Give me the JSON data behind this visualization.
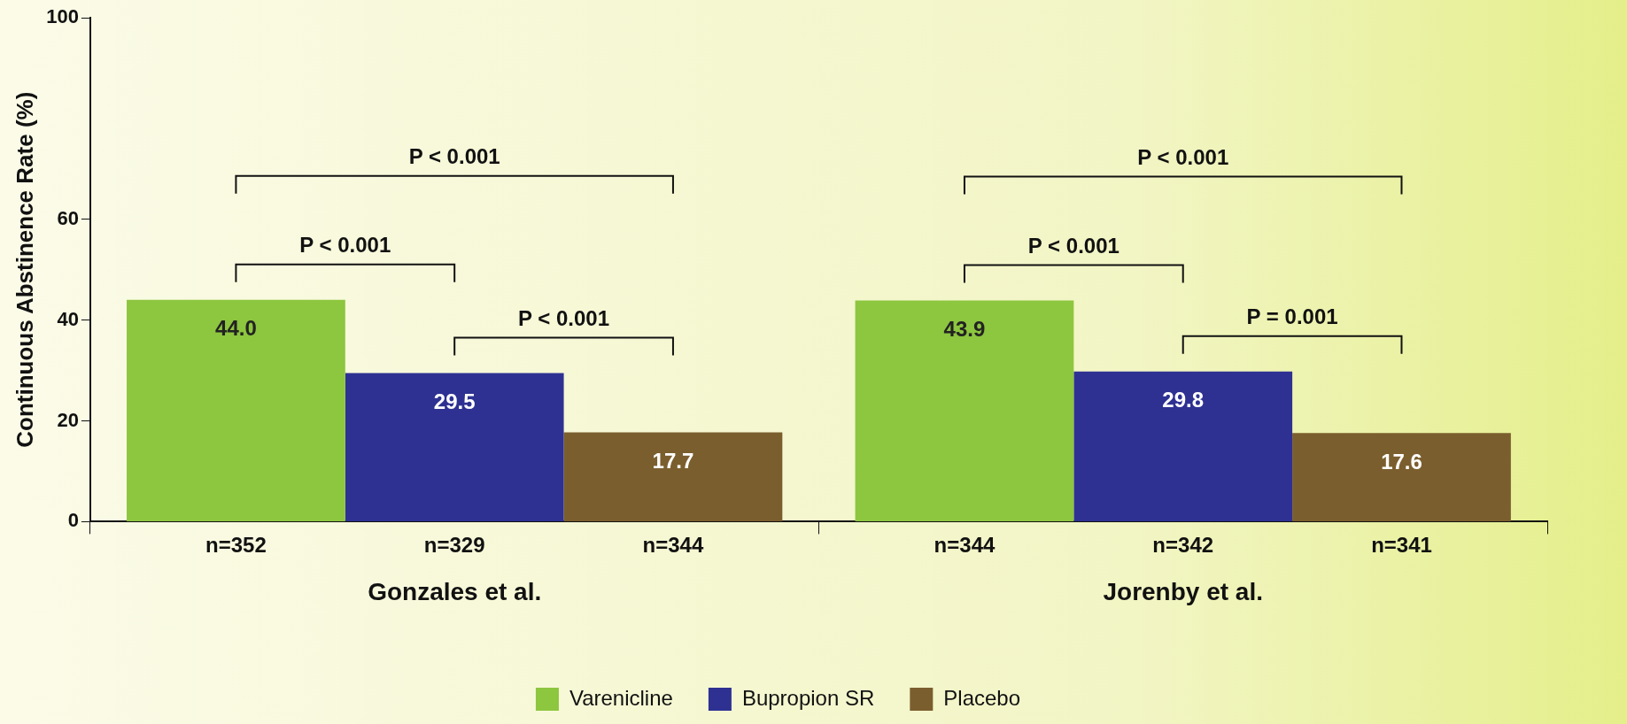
{
  "chart_data": {
    "type": "bar",
    "ylabel": "Continuous Abstinence Rate (%)",
    "categories": [
      "Gonzales et al.",
      "Jorenby et al."
    ],
    "series": [
      {
        "name": "Varenicline",
        "color": "#8dc63f",
        "values": [
          44.0,
          43.9
        ],
        "value_labels": [
          "44.0",
          "43.9"
        ]
      },
      {
        "name": "Bupropion SR",
        "color": "#2e3192",
        "values": [
          29.5,
          29.8
        ],
        "value_labels": [
          "29.5",
          "29.8"
        ]
      },
      {
        "name": "Placebo",
        "color": "#7b5e2e",
        "values": [
          17.7,
          17.6
        ],
        "value_labels": [
          "17.7",
          "17.6"
        ]
      }
    ],
    "ylim": [
      0,
      100
    ],
    "yticks": [
      0,
      20,
      40,
      60,
      100
    ],
    "grid": false,
    "legend": "bottom",
    "annotations": [
      "n=352",
      "n=329",
      "n=344",
      "n=344",
      "n=342",
      "n=341",
      "P < 0.001",
      "P < 0.001",
      "P < 0.001",
      "P < 0.001",
      "P < 0.001",
      "P = 0.001"
    ]
  }
}
